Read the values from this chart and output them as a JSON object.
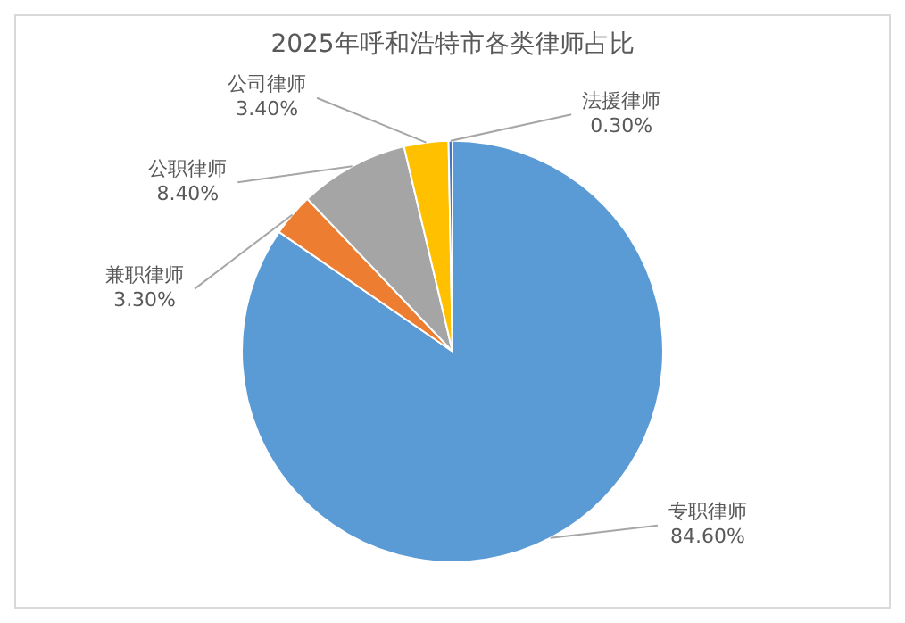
{
  "chart_data": {
    "type": "pie",
    "title": "2025年呼和浩特市各类律师占比",
    "categories": [
      "专职律师",
      "兼职律师",
      "公职律师",
      "公司律师",
      "法援律师"
    ],
    "values": [
      84.6,
      3.3,
      8.4,
      3.4,
      0.3
    ],
    "colors": [
      "#5b9bd5",
      "#ed7d31",
      "#a5a5a5",
      "#ffc000",
      "#4472c4"
    ],
    "value_labels": [
      "84.60%",
      "3.30%",
      "8.40%",
      "3.40%",
      "0.30%"
    ],
    "legend": false
  }
}
